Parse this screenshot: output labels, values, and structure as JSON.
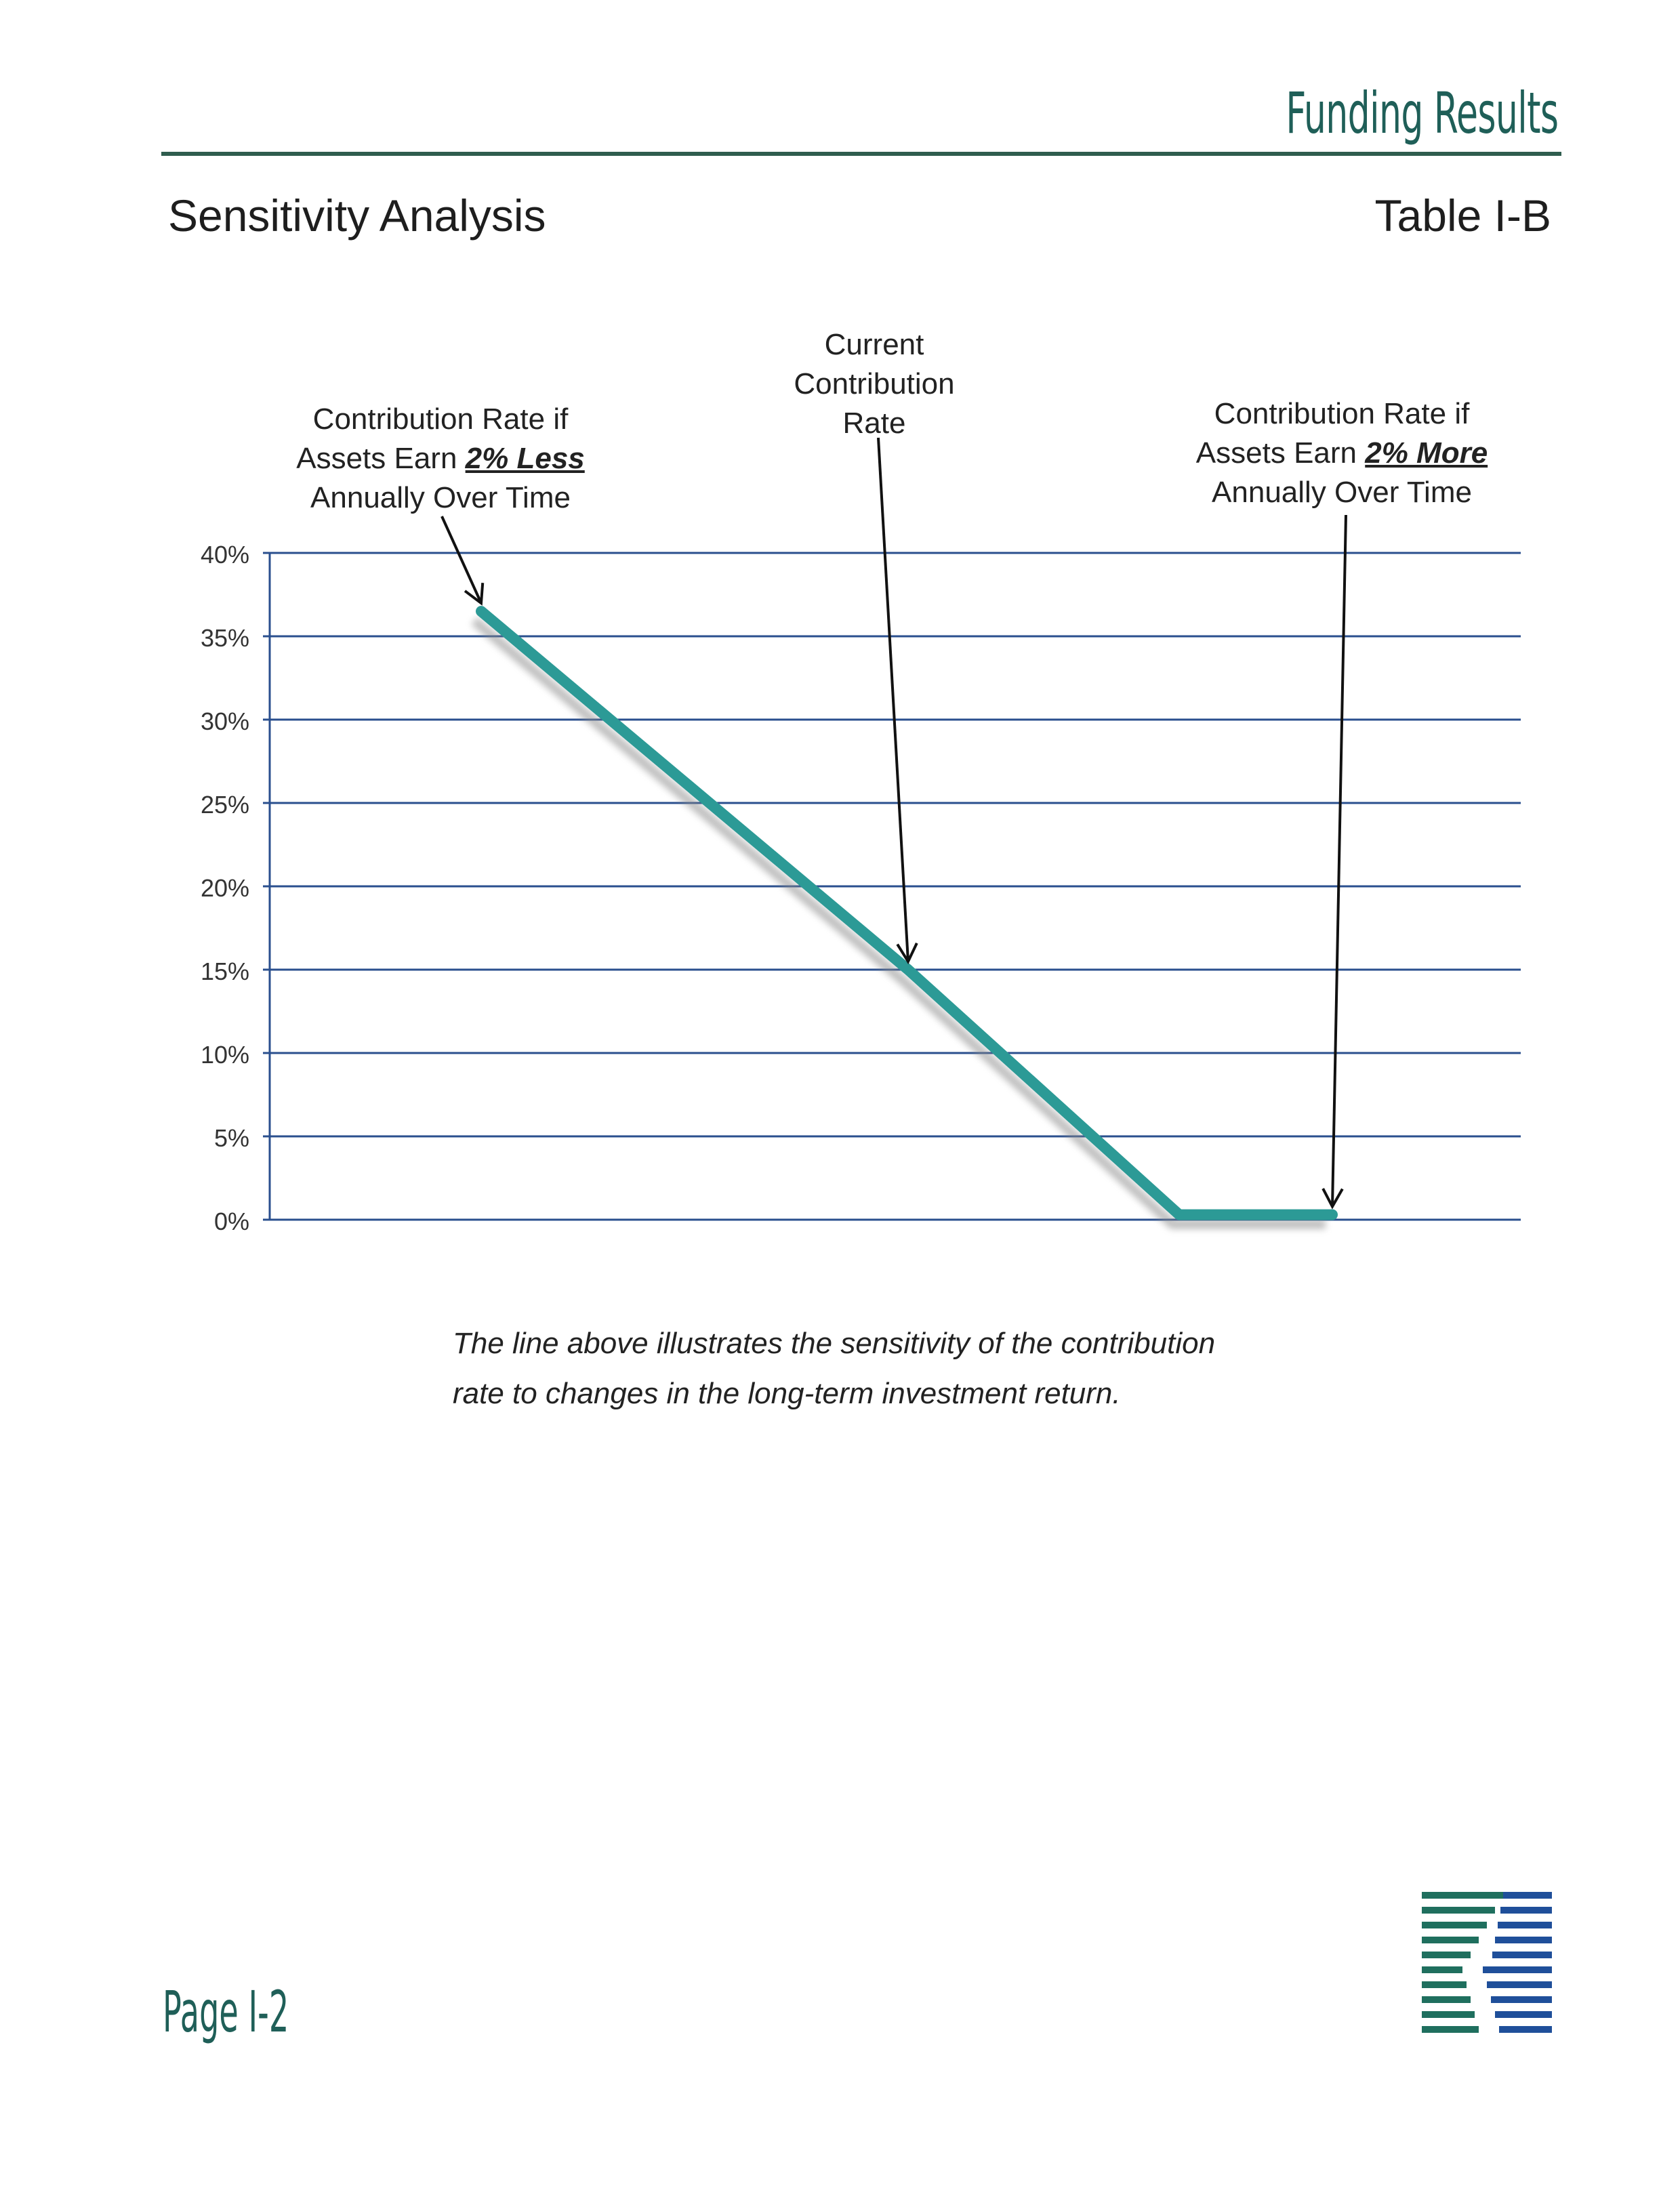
{
  "header": {
    "section_title": "Funding Results",
    "page_heading": "Sensitivity Analysis",
    "table_id": "Table I-B"
  },
  "annotations": {
    "less": {
      "line1": "Contribution Rate if",
      "line2_prefix": "Assets Earn ",
      "line2_emph": "2% Less",
      "line3": "Annually Over Time"
    },
    "current": {
      "line1": "Current",
      "line2": "Contribution",
      "line3": "Rate"
    },
    "more": {
      "line1": "Contribution Rate if",
      "line2_prefix": "Assets Earn ",
      "line2_emph": "2% More",
      "line3": "Annually Over Time"
    }
  },
  "caption": {
    "line1": "The line above illustrates the sensitivity of the contribution",
    "line2": "rate to changes in the long-term investment return."
  },
  "footer": {
    "page_number": "Page I-2"
  },
  "colors": {
    "line": "#2c9a96",
    "grid": "#2a4f8e",
    "accent": "#1f5f58",
    "logo_blue": "#1f4f9a",
    "logo_green": "#1f6f5e"
  },
  "chart_data": {
    "type": "line",
    "title": "",
    "xlabel": "",
    "ylabel": "",
    "y_tick_labels": [
      "0%",
      "5%",
      "10%",
      "15%",
      "20%",
      "25%",
      "30%",
      "35%",
      "40%"
    ],
    "ylim": [
      0,
      40
    ],
    "grid": true,
    "series": [
      {
        "x": [
          0,
          1,
          2,
          3
        ],
        "values": [
          36.5,
          15,
          0.3,
          0.3
        ]
      }
    ],
    "markers": [
      {
        "key": "less",
        "x": 0,
        "y": 36.5
      },
      {
        "key": "current",
        "x": 1,
        "y": 15
      },
      {
        "key": "more",
        "x": 3,
        "y": 0.3
      }
    ]
  }
}
